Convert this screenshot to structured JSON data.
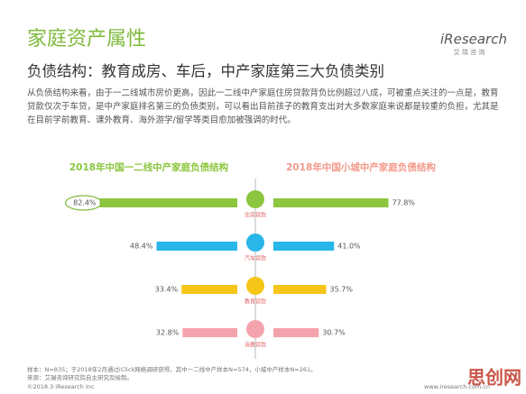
{
  "header": {
    "title": "家庭资产属性",
    "subtitle": "负债结构：教育成房、车后，中产家庭第三大负债类别",
    "logo": "iResearch",
    "logo_sub": "艾 瑞 咨 询"
  },
  "intro": "从负债结构来看，由于一二线城市房价更高，因此一二线中产家庭住房贷款背负比例超过八成，可被重点关注的一点是，教育贷款仅次于车贷，是中产家庭排名第三的负债类别，可以看出目前孩子的教育支出对大多数家庭来说都是较重的负担，尤其是在目前学前教育、课外教育、海外游学/留学等类目愈加被强调的时代。",
  "chart_data": [
    {
      "type": "bar",
      "title": "2018年中国一二线中产家庭负债结构",
      "title_color": "#8cc63f",
      "categories": [
        "住房贷款",
        "汽车贷款",
        "教育贷款",
        "消费贷款"
      ],
      "colors": [
        "#8cc63f",
        "#29b6e8",
        "#f5c518",
        "#f4a3ad"
      ],
      "values": [
        82.4,
        48.4,
        33.4,
        32.8
      ],
      "value_labels": [
        "82.4%",
        "48.4%",
        "33.4%",
        "32.8%"
      ]
    },
    {
      "type": "bar",
      "title": "2018年中国小城中产家庭负债结构",
      "title_color": "#f39a8a",
      "colors": [
        "#8cc63f",
        "#29b6e8",
        "#f5c518",
        "#f4a3ad"
      ],
      "values": [
        77.8,
        41.0,
        35.7,
        30.7
      ],
      "value_labels": [
        "77.8%",
        "41.0%",
        "35.7%",
        "30.7%"
      ]
    }
  ],
  "footer": {
    "note": "样本：N=835；于2018年2月通过iClick网络调研获得。其中一二线中产样本N=574，小城中产样本N=261。",
    "source": "来源：艾瑞咨询研究院自主研究及绘制。",
    "copyright": "©2018.3 iResearch Inc",
    "site": "www.iresearch.com.cn"
  },
  "watermark": "思创网"
}
